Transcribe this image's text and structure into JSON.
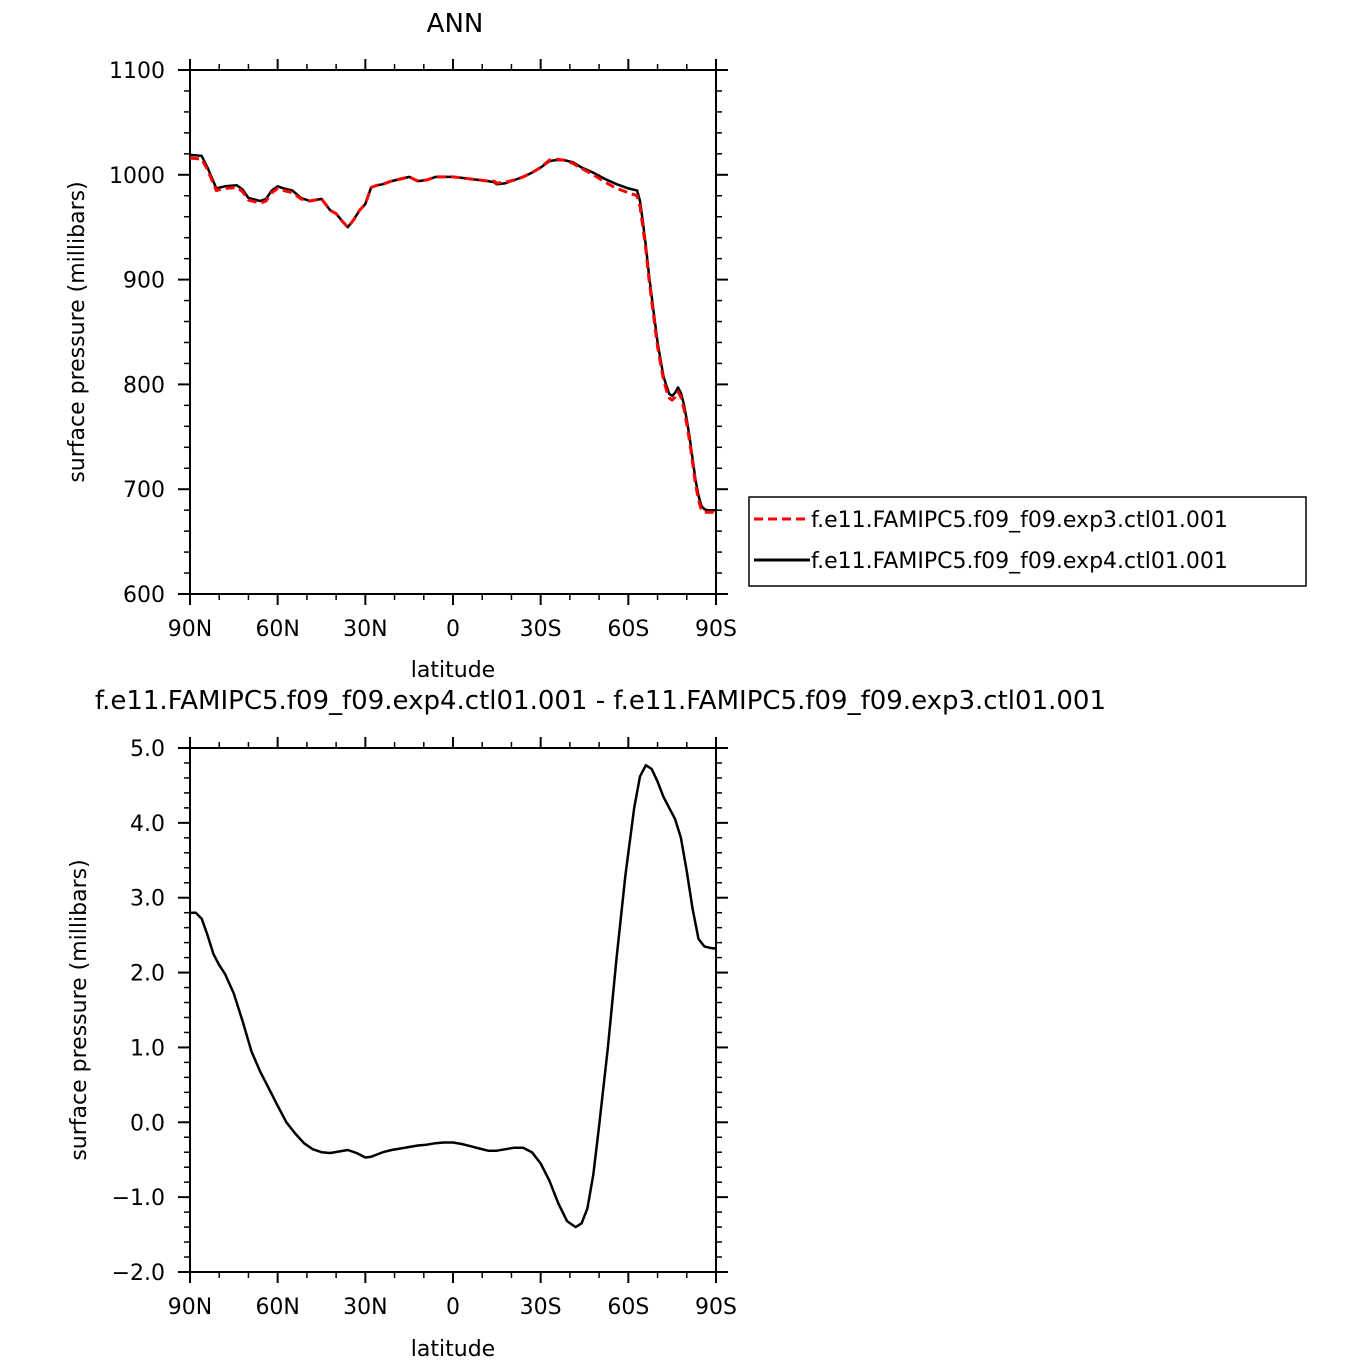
{
  "chart_data": [
    {
      "type": "line",
      "title": "ANN",
      "xlabel": "latitude",
      "ylabel": "surface pressure (millibars)",
      "xlim": [
        90,
        -90
      ],
      "ylim": [
        600,
        1100
      ],
      "x_ticks": [
        {
          "value": 90,
          "label": "90N"
        },
        {
          "value": 60,
          "label": "60N"
        },
        {
          "value": 30,
          "label": "30N"
        },
        {
          "value": 0,
          "label": "0"
        },
        {
          "value": -30,
          "label": "30S"
        },
        {
          "value": -60,
          "label": "60S"
        },
        {
          "value": -90,
          "label": "90S"
        }
      ],
      "y_ticks": [
        {
          "value": 600,
          "label": "600"
        },
        {
          "value": 700,
          "label": "700"
        },
        {
          "value": 800,
          "label": "800"
        },
        {
          "value": 900,
          "label": "900"
        },
        {
          "value": 1000,
          "label": "1000"
        },
        {
          "value": 1100,
          "label": "1100"
        }
      ],
      "legend_position": "right",
      "series": [
        {
          "name": "f.e11.FAMIPC5.f09_f09.exp3.ctl01.001",
          "color": "#ff0000",
          "dash": "dashed",
          "x": [
            90,
            86,
            84,
            81,
            78,
            74,
            72,
            70,
            66,
            64,
            62,
            60,
            58,
            55,
            52,
            49,
            45,
            42,
            40,
            38,
            36,
            34,
            32,
            30,
            28,
            26,
            24,
            21,
            18,
            15,
            12,
            9,
            6,
            3,
            0,
            -3,
            -6,
            -9,
            -12,
            -14,
            -15,
            -18,
            -21,
            -24,
            -27,
            -30,
            -33,
            -35,
            -38,
            -41,
            -44,
            -48,
            -52,
            -56,
            -60,
            -63,
            -64,
            -65,
            -66,
            -67,
            -68,
            -69,
            -70,
            -71,
            -72,
            -73,
            -74,
            -75,
            -76,
            -77,
            -78,
            -79,
            -80,
            -81,
            -82,
            -83,
            -84,
            -85,
            -86,
            -87,
            -88,
            -89,
            -90
          ],
          "y": [
            1016,
            1015,
            1005,
            985,
            987,
            988,
            984,
            976,
            973,
            975,
            983,
            987,
            985,
            983,
            977,
            975,
            977,
            966,
            963,
            956,
            950,
            957,
            966,
            972,
            988,
            990,
            991,
            994,
            996,
            998,
            994,
            995,
            998,
            998,
            998,
            997,
            996,
            995,
            994,
            994,
            992,
            993,
            995,
            998,
            1002,
            1007,
            1014,
            1015,
            1014,
            1011,
            1006,
            1000,
            993,
            987,
            983,
            980,
            970,
            950,
            928,
            902,
            880,
            858,
            836,
            820,
            805,
            795,
            787,
            785,
            788,
            793,
            788,
            777,
            762,
            745,
            725,
            705,
            690,
            680,
            678,
            678,
            678,
            678,
            678
          ]
        },
        {
          "name": "f.e11.FAMIPC5.f09_f09.exp4.ctl01.001",
          "color": "#000000",
          "dash": "solid",
          "x": [
            90,
            86,
            84,
            81,
            78,
            74,
            72,
            70,
            66,
            64,
            62,
            60,
            58,
            55,
            52,
            49,
            45,
            42,
            40,
            38,
            36,
            34,
            32,
            30,
            28,
            26,
            24,
            21,
            18,
            15,
            12,
            9,
            6,
            3,
            0,
            -3,
            -6,
            -9,
            -12,
            -14,
            -15,
            -18,
            -21,
            -24,
            -27,
            -30,
            -33,
            -35,
            -38,
            -41,
            -44,
            -48,
            -52,
            -56,
            -60,
            -63,
            -64,
            -65,
            -66,
            -67,
            -68,
            -69,
            -70,
            -71,
            -72,
            -73,
            -74,
            -75,
            -76,
            -77,
            -78,
            -79,
            -80,
            -81,
            -82,
            -83,
            -84,
            -85,
            -86,
            -87,
            -88,
            -89,
            -90
          ],
          "y": [
            1019,
            1018,
            1007,
            987,
            989,
            990,
            986,
            978,
            975,
            977,
            985,
            989,
            987,
            985,
            978,
            975,
            977,
            966,
            963,
            956,
            950,
            957,
            966,
            972,
            988,
            990,
            991,
            994,
            996,
            998,
            994,
            995,
            998,
            998,
            998,
            997,
            996,
            995,
            994,
            993,
            991,
            992,
            995,
            998,
            1002,
            1007,
            1013,
            1014,
            1014,
            1012,
            1007,
            1002,
            996,
            991,
            987,
            985,
            975,
            955,
            932,
            906,
            884,
            862,
            840,
            824,
            808,
            799,
            791,
            789,
            792,
            797,
            792,
            781,
            766,
            749,
            729,
            709,
            694,
            684,
            681,
            680,
            680,
            680,
            680
          ]
        }
      ]
    },
    {
      "type": "line",
      "title": "f.e11.FAMIPC5.f09_f09.exp4.ctl01.001 - f.e11.FAMIPC5.f09_f09.exp3.ctl01.001",
      "xlabel": "latitude",
      "ylabel": "surface pressure (millibars)",
      "xlim": [
        90,
        -90
      ],
      "ylim": [
        -2.0,
        5.0
      ],
      "x_ticks": [
        {
          "value": 90,
          "label": "90N"
        },
        {
          "value": 60,
          "label": "60N"
        },
        {
          "value": 30,
          "label": "30N"
        },
        {
          "value": 0,
          "label": "0"
        },
        {
          "value": -30,
          "label": "30S"
        },
        {
          "value": -60,
          "label": "60S"
        },
        {
          "value": -90,
          "label": "90S"
        }
      ],
      "y_ticks": [
        {
          "value": -2.0,
          "label": "−2.0"
        },
        {
          "value": -1.0,
          "label": "−1.0"
        },
        {
          "value": 0.0,
          "label": "0.0"
        },
        {
          "value": 1.0,
          "label": "1.0"
        },
        {
          "value": 2.0,
          "label": "2.0"
        },
        {
          "value": 3.0,
          "label": "3.0"
        },
        {
          "value": 4.0,
          "label": "4.0"
        },
        {
          "value": 5.0,
          "label": "5.0"
        }
      ],
      "series": [
        {
          "color": "#000000",
          "dash": "solid",
          "x": [
            90,
            88,
            86,
            84,
            82,
            80,
            78,
            75,
            72,
            69,
            66,
            63,
            60,
            57,
            54,
            51,
            48,
            45,
            42,
            39,
            36,
            33,
            30,
            28,
            26,
            24,
            21,
            18,
            15,
            12,
            9,
            6,
            3,
            0,
            -3,
            -6,
            -9,
            -12,
            -15,
            -18,
            -21,
            -24,
            -27,
            -30,
            -33,
            -36,
            -39,
            -42,
            -44,
            -46,
            -48,
            -50,
            -53,
            -56,
            -59,
            -62,
            -64,
            -66,
            -68,
            -70,
            -72,
            -74,
            -76,
            -78,
            -80,
            -82,
            -84,
            -86,
            -88,
            -90
          ],
          "y": [
            2.8,
            2.8,
            2.72,
            2.5,
            2.25,
            2.1,
            1.98,
            1.72,
            1.35,
            0.95,
            0.68,
            0.45,
            0.22,
            0.0,
            -0.15,
            -0.28,
            -0.36,
            -0.4,
            -0.41,
            -0.39,
            -0.37,
            -0.41,
            -0.47,
            -0.46,
            -0.43,
            -0.4,
            -0.37,
            -0.35,
            -0.33,
            -0.31,
            -0.3,
            -0.28,
            -0.27,
            -0.27,
            -0.29,
            -0.32,
            -0.35,
            -0.38,
            -0.38,
            -0.36,
            -0.34,
            -0.34,
            -0.4,
            -0.55,
            -0.78,
            -1.08,
            -1.32,
            -1.4,
            -1.35,
            -1.15,
            -0.7,
            -0.05,
            1.0,
            2.2,
            3.3,
            4.2,
            4.62,
            4.77,
            4.72,
            4.55,
            4.35,
            4.2,
            4.05,
            3.8,
            3.35,
            2.85,
            2.45,
            2.35,
            2.33,
            2.32
          ]
        }
      ]
    }
  ]
}
